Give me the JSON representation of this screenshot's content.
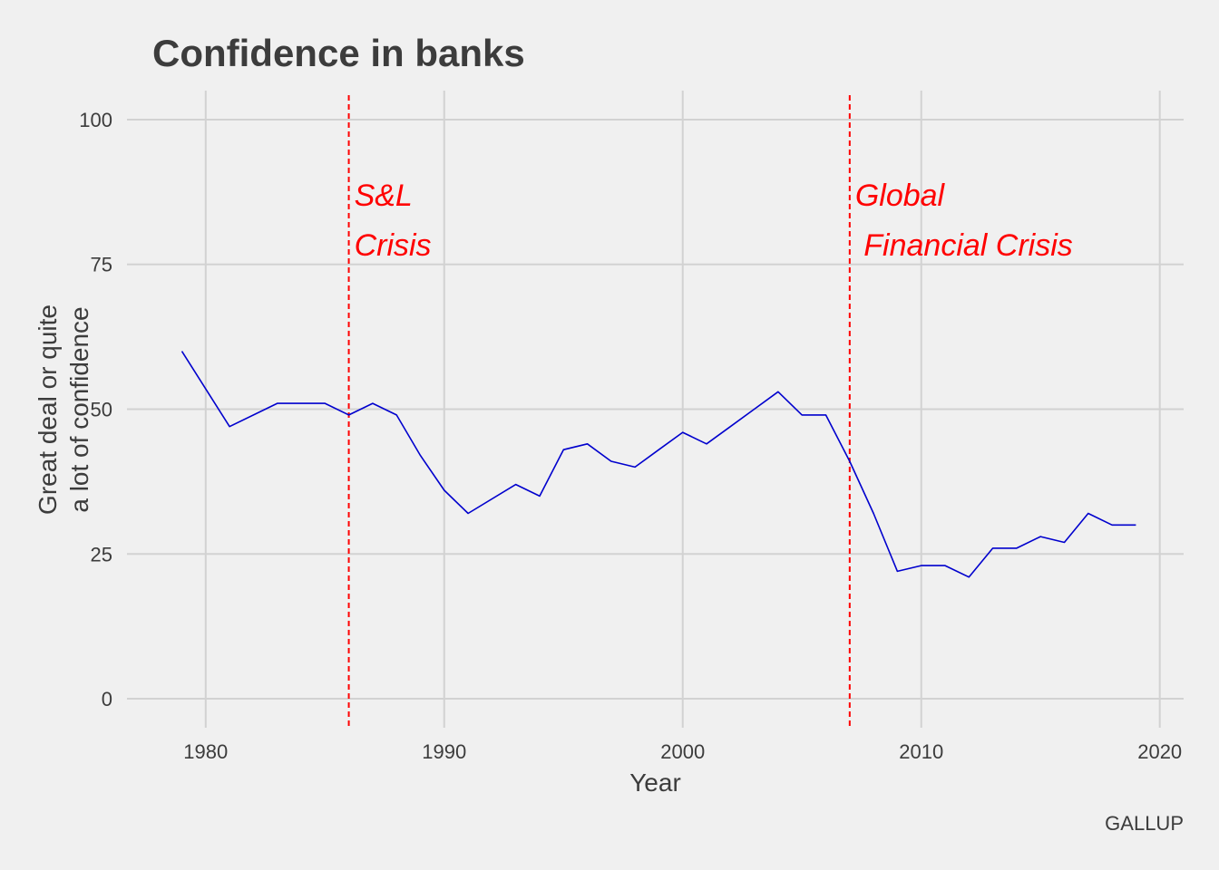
{
  "chart_data": {
    "type": "line",
    "title": "Confidence in banks",
    "xlabel": "Year",
    "ylabel_lines": [
      "Great deal or quite",
      "a lot of confidence"
    ],
    "caption": "GALLUP",
    "xlim": [
      1976.7,
      2021
    ],
    "ylim": [
      -5,
      105
    ],
    "x_ticks": [
      1980,
      1990,
      2000,
      2010,
      2020
    ],
    "y_ticks": [
      0,
      25,
      50,
      75,
      100
    ],
    "grid": true,
    "colors": {
      "line": "#0000cd",
      "annotation": "#ff0000",
      "background": "#f0f0f0",
      "grid": "#d2d2d2",
      "text": "#3c3c3c"
    },
    "series": [
      {
        "x": [
          1979,
          1981,
          1983,
          1984,
          1985,
          1986,
          1987,
          1988,
          1989,
          1990,
          1991,
          1993,
          1994,
          1995,
          1996,
          1997,
          1998,
          1999,
          2000,
          2001,
          2002,
          2003,
          2004,
          2005,
          2006,
          2007,
          2008,
          2009,
          2010,
          2011,
          2012,
          2013,
          2014,
          2015,
          2016,
          2017,
          2018,
          2019
        ],
        "y": [
          60,
          47,
          51,
          51,
          51,
          49,
          51,
          49,
          42,
          36,
          32,
          37,
          35,
          43,
          44,
          41,
          40,
          43,
          46,
          44,
          47,
          50,
          53,
          49,
          49,
          41,
          32,
          22,
          23,
          23,
          21,
          26,
          26,
          28,
          27,
          32,
          30,
          30
        ]
      }
    ],
    "vlines": [
      {
        "x": 1986,
        "lines": [
          "S&L",
          "Crisis"
        ]
      },
      {
        "x": 2007,
        "lines": [
          "Global",
          " Financial Crisis"
        ]
      }
    ]
  }
}
